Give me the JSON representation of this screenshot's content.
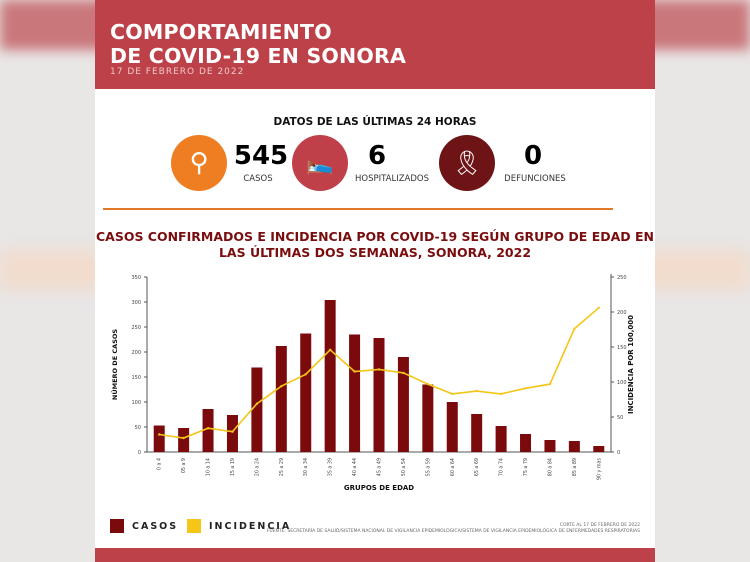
{
  "header": {
    "title_line1": "COMPORTAMIENTO",
    "title_line2": "DE COVID-19 EN SONORA",
    "date": "17 DE FEBRERO DE 2022"
  },
  "stats": {
    "heading": "DATOS DE LAS ÚLTIMAS 24 HORAS",
    "items": [
      {
        "value": "545",
        "label": "CASOS",
        "icon": "virus-magnifier-icon",
        "color": "#ef7d22"
      },
      {
        "value": "6",
        "label": "HOSPITALIZADOS",
        "icon": "hospital-bed-icon",
        "color": "#c0404a"
      },
      {
        "value": "0",
        "label": "DEFUNCIONES",
        "icon": "ribbon-icon",
        "color": "#6e1416"
      }
    ]
  },
  "chart_data": {
    "type": "bar+line",
    "title": "CASOS CONFIRMADOS E INCIDENCIA POR COVID-19 SEGÚN GRUPO DE EDAD EN LAS ÚLTIMAS DOS SEMANAS, SONORA, 2022",
    "xlabel": "GRUPOS DE EDAD",
    "ylabel": "NÚMERO DE CASOS",
    "y2label": "INCIDENCIA POR 100,000",
    "ylim": [
      0,
      350
    ],
    "yticks": [
      0,
      50,
      100,
      150,
      200,
      250,
      300,
      350
    ],
    "y2lim": [
      0,
      250
    ],
    "categories": [
      "0 a 4",
      "05 a 9",
      "10 a 14",
      "15 a 19",
      "20 a 24",
      "25 a 29",
      "30 a 34",
      "35 a 39",
      "40 a 44",
      "45 a 49",
      "50 a 54",
      "55 a 59",
      "60 a 64",
      "65 a 69",
      "70 a 74",
      "75 a 79",
      "80 a 84",
      "85 a 89",
      "90 y mas"
    ],
    "series": [
      {
        "name": "CASOS",
        "type": "bar",
        "axis": "left",
        "color": "#7a0a0c",
        "values": [
          53,
          48,
          86,
          74,
          169,
          212,
          237,
          304,
          235,
          228,
          190,
          135,
          100,
          76,
          52,
          36,
          24,
          22,
          12
        ]
      },
      {
        "name": "INCIDENCIA",
        "type": "line",
        "axis": "right",
        "color": "#f5c518",
        "values": [
          25,
          20,
          34,
          29,
          69,
          94,
          111,
          146,
          115,
          118,
          113,
          97,
          83,
          87,
          83,
          91,
          97,
          176,
          206
        ]
      }
    ],
    "legend": "bottom-left"
  },
  "footer": {
    "cutoff": "CORTE AL 17 DE FEBRERO DE 2022",
    "source": "FUENTE: SECRETARÍA DE SALUD/SISTEMA NACIONAL DE VIGILANCIA EPIDEMIOLÓGICA/SISTEMA DE VIGILANCIA EPIDEMIOLÓGICA DE ENFERMEDADES RESPIRATORIAS"
  }
}
